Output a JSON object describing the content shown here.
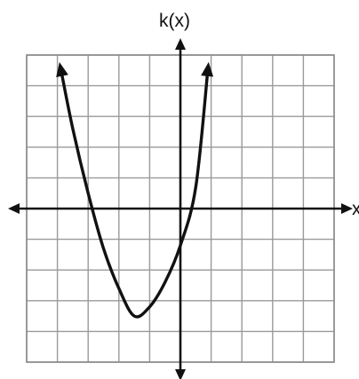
{
  "chart_data": {
    "type": "line",
    "title": "",
    "xlabel": "x",
    "ylabel": "k(x)",
    "xlim": [
      -5,
      5
    ],
    "ylim": [
      -5,
      5
    ],
    "grid": true,
    "series": [
      {
        "values_note": "",
        "x": [
          -3.9,
          -3.5,
          -3.0,
          -2.5,
          -2.0,
          -1.5,
          -1.0,
          -0.5,
          0.0,
          0.5,
          0.9
        ],
        "y": [
          4.6,
          2.6,
          0.5,
          -1.3,
          -2.6,
          -3.5,
          -3.2,
          -2.4,
          -1.2,
          0.7,
          4.6
        ]
      }
    ]
  },
  "labels": {
    "y_axis": "k(x)",
    "x_axis": "x"
  }
}
